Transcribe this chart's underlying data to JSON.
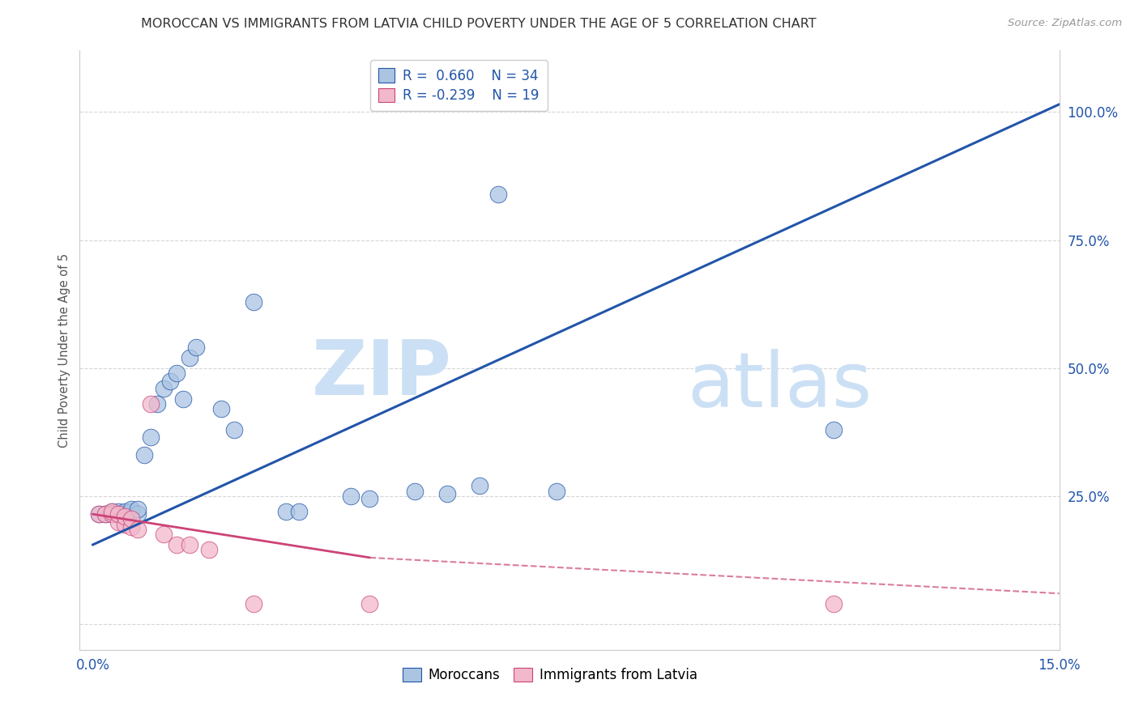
{
  "title": "MOROCCAN VS IMMIGRANTS FROM LATVIA CHILD POVERTY UNDER THE AGE OF 5 CORRELATION CHART",
  "source": "Source: ZipAtlas.com",
  "ylabel": "Child Poverty Under the Age of 5",
  "xlim": [
    0.0,
    0.15
  ],
  "ylim": [
    0.0,
    1.1
  ],
  "xticks": [
    0.0,
    0.03,
    0.06,
    0.09,
    0.12,
    0.15
  ],
  "xticklabels": [
    "0.0%",
    "",
    "",
    "",
    "",
    "15.0%"
  ],
  "yticks_right": [
    0.0,
    0.25,
    0.5,
    0.75,
    1.0
  ],
  "yticklabels_right": [
    "",
    "25.0%",
    "50.0%",
    "75.0%",
    "100.0%"
  ],
  "moroccan_color": "#aac4e2",
  "latvian_color": "#f2b8cb",
  "moroccan_line_color": "#2255aa",
  "latvian_line_color": "#cc4477",
  "moroccan_r": 0.66,
  "moroccan_n": 34,
  "latvian_r": -0.239,
  "latvian_n": 19,
  "watermark_zip": "ZIP",
  "watermark_atlas": "atlas",
  "moroccan_points": [
    [
      0.001,
      0.215
    ],
    [
      0.002,
      0.215
    ],
    [
      0.003,
      0.215
    ],
    [
      0.003,
      0.22
    ],
    [
      0.004,
      0.215
    ],
    [
      0.004,
      0.22
    ],
    [
      0.005,
      0.215
    ],
    [
      0.005,
      0.22
    ],
    [
      0.006,
      0.22
    ],
    [
      0.006,
      0.225
    ],
    [
      0.007,
      0.215
    ],
    [
      0.007,
      0.225
    ],
    [
      0.008,
      0.33
    ],
    [
      0.009,
      0.365
    ],
    [
      0.01,
      0.43
    ],
    [
      0.011,
      0.46
    ],
    [
      0.012,
      0.475
    ],
    [
      0.013,
      0.49
    ],
    [
      0.014,
      0.44
    ],
    [
      0.015,
      0.52
    ],
    [
      0.016,
      0.54
    ],
    [
      0.02,
      0.42
    ],
    [
      0.022,
      0.38
    ],
    [
      0.025,
      0.63
    ],
    [
      0.03,
      0.22
    ],
    [
      0.032,
      0.22
    ],
    [
      0.04,
      0.25
    ],
    [
      0.043,
      0.245
    ],
    [
      0.05,
      0.26
    ],
    [
      0.055,
      0.255
    ],
    [
      0.06,
      0.27
    ],
    [
      0.063,
      0.84
    ],
    [
      0.072,
      0.26
    ],
    [
      0.115,
      0.38
    ]
  ],
  "latvian_points": [
    [
      0.001,
      0.215
    ],
    [
      0.002,
      0.215
    ],
    [
      0.003,
      0.215
    ],
    [
      0.003,
      0.22
    ],
    [
      0.004,
      0.2
    ],
    [
      0.004,
      0.215
    ],
    [
      0.005,
      0.195
    ],
    [
      0.005,
      0.21
    ],
    [
      0.006,
      0.19
    ],
    [
      0.006,
      0.205
    ],
    [
      0.007,
      0.185
    ],
    [
      0.009,
      0.43
    ],
    [
      0.011,
      0.175
    ],
    [
      0.013,
      0.155
    ],
    [
      0.015,
      0.155
    ],
    [
      0.018,
      0.145
    ],
    [
      0.025,
      0.04
    ],
    [
      0.043,
      0.04
    ],
    [
      0.115,
      0.04
    ]
  ],
  "moroccan_line": [
    0.0,
    0.155,
    0.15,
    1.015
  ],
  "latvian_line_solid": [
    0.0,
    0.215,
    0.043,
    0.13
  ],
  "latvian_line_dash": [
    0.043,
    0.13,
    0.15,
    0.06
  ],
  "grid_color": "#cccccc",
  "background_color": "#ffffff",
  "title_fontsize": 11.5,
  "source_fontsize": 9.5,
  "axis_color": "#2255aa"
}
